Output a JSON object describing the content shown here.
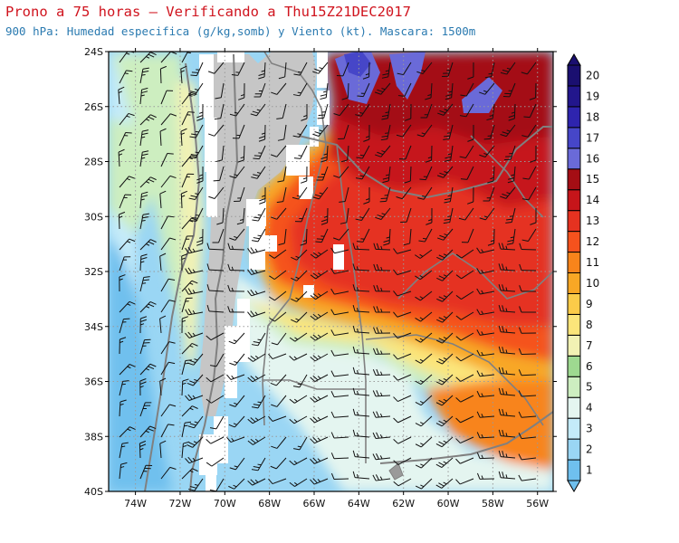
{
  "header": {
    "title": "Prono a 75 horas — Verificando a Thu15Z21DEC2017",
    "subtitle": "900 hPa: Humedad especifica (g/kg,somb) y Viento (kt). Mascara: 1500m"
  },
  "map": {
    "lat_labels": [
      "24S",
      "26S",
      "28S",
      "30S",
      "32S",
      "34S",
      "36S",
      "38S",
      "40S"
    ],
    "lon_labels": [
      "74W",
      "72W",
      "70W",
      "68W",
      "66W",
      "64W",
      "62W",
      "60W",
      "58W",
      "56W"
    ],
    "lat_values": [
      -24,
      -26,
      -28,
      -30,
      -32,
      -34,
      -36,
      -38,
      -40
    ],
    "lon_values": [
      -74,
      -72,
      -70,
      -68,
      -66,
      -64,
      -62,
      -60,
      -58,
      -56
    ],
    "extent": {
      "lon_min": -75.2,
      "lon_max": -55.3,
      "lat_max": -24,
      "lat_min": -40
    },
    "mask_color": "#c6c6c6",
    "border_color": "#808080",
    "barb_color": "#111111"
  },
  "colorbar": {
    "levels": [
      "1",
      "2",
      "3",
      "4",
      "5",
      "6",
      "7",
      "8",
      "9",
      "10",
      "11",
      "12",
      "13",
      "14",
      "15",
      "16",
      "17",
      "18",
      "19",
      "20"
    ],
    "colors": [
      "#6fc0ee",
      "#9ad6f4",
      "#c4ebf9",
      "#e4f5f0",
      "#cdeec0",
      "#9ed990",
      "#f2f2b4",
      "#fbe57a",
      "#fbcb49",
      "#f8a725",
      "#f8841b",
      "#f5521d",
      "#e53220",
      "#c6151a",
      "#a40e14",
      "#6a6ad8",
      "#4646c8",
      "#2e24ae",
      "#22168c",
      "#1a0f70"
    ]
  }
}
